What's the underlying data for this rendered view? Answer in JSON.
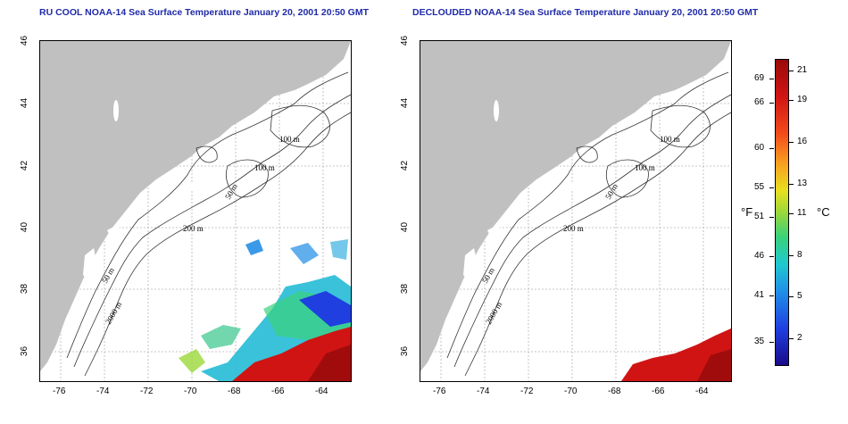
{
  "titles": {
    "left": "RU COOL NOAA-14 Sea Surface Temperature January 20, 2001 20:50 GMT",
    "right": "DECLOUDED NOAA-14 Sea Surface Temperature January 20, 2001 20:50 GMT"
  },
  "axes": {
    "lon_ticks": [
      "-76",
      "-74",
      "-72",
      "-70",
      "-68",
      "-66",
      "-64"
    ],
    "lat_ticks": [
      "46",
      "44",
      "42",
      "40",
      "38",
      "36"
    ]
  },
  "contour_labels": {
    "left": [
      "100 m",
      "100 m",
      "50 m",
      "200 m",
      "50 m",
      "2000 m"
    ],
    "right": [
      "100 m",
      "100 m",
      "50 m",
      "200 m",
      "50 m",
      "2000 m"
    ]
  },
  "colorbar": {
    "fahrenheit_unit": "°F",
    "celsius_unit": "°C",
    "fahrenheit_ticks": [
      "69",
      "66",
      "60",
      "55",
      "51",
      "46",
      "41",
      "35"
    ],
    "celsius_ticks": [
      "21",
      "19",
      "16",
      "13",
      "11",
      "8",
      "5",
      "2"
    ]
  },
  "colors": {
    "land": "#c0c0c0",
    "title": "#1f2aa8",
    "warm": "#d01414",
    "cool": "#1f3fe0"
  }
}
